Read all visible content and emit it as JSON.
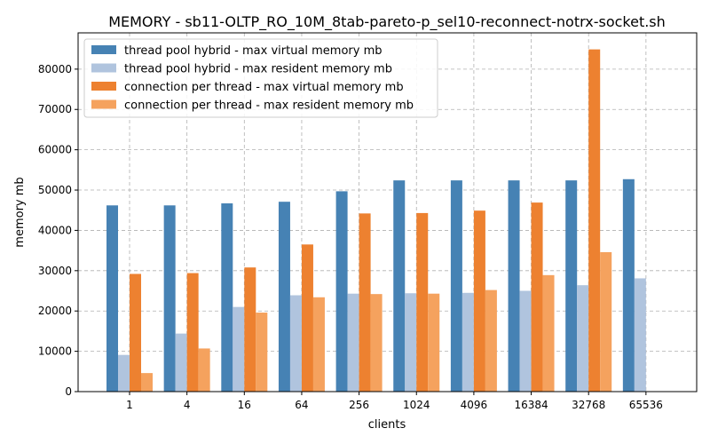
{
  "chart_data": {
    "type": "bar",
    "title": "MEMORY - sb11-OLTP_RO_10M_8tab-pareto-p_sel10-reconnect-notrx-socket.sh",
    "xlabel": "clients",
    "ylabel": "memory mb",
    "categories": [
      "1",
      "4",
      "16",
      "64",
      "256",
      "1024",
      "4096",
      "16384",
      "32768",
      "65536"
    ],
    "ylim": [
      0,
      89000
    ],
    "yticks": [
      0,
      10000,
      20000,
      30000,
      40000,
      50000,
      60000,
      70000,
      80000
    ],
    "grid": true,
    "legend_position": "top-left",
    "series": [
      {
        "name": "thread pool hybrid - max virtual memory mb",
        "color": "#4682b4",
        "values": [
          46200,
          46200,
          46700,
          47100,
          49700,
          52400,
          52400,
          52400,
          52400,
          52700
        ]
      },
      {
        "name": "thread pool hybrid - max resident memory mb",
        "color": "#b0c4de",
        "values": [
          9100,
          14400,
          21000,
          23900,
          24300,
          24400,
          24500,
          25000,
          26400,
          28100
        ]
      },
      {
        "name": "connection per thread - max virtual memory mb",
        "color": "#ed8130",
        "values": [
          29200,
          29400,
          30800,
          36500,
          44200,
          44300,
          44900,
          46900,
          84900,
          null
        ]
      },
      {
        "name": "connection per thread - max resident memory mb",
        "color": "#f5a25e",
        "values": [
          4600,
          10700,
          19600,
          23400,
          24200,
          24300,
          25200,
          28900,
          34600,
          null
        ]
      }
    ]
  }
}
